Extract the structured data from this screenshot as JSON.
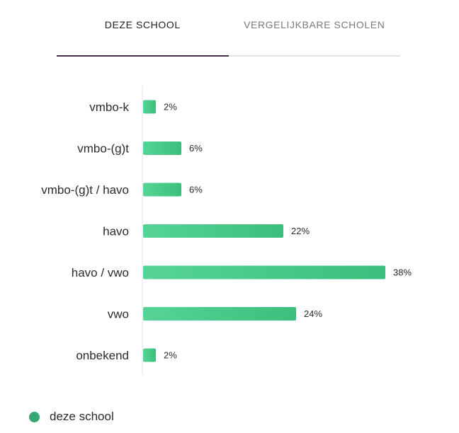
{
  "tabs": [
    {
      "label": "DEZE SCHOOL",
      "active": true
    },
    {
      "label": "VERGELIJKBARE SCHOLEN",
      "active": false
    }
  ],
  "chart_data": {
    "type": "bar",
    "orientation": "horizontal",
    "categories": [
      "vmbo-k",
      "vmbo-(g)t",
      "vmbo-(g)t / havo",
      "havo",
      "havo / vwo",
      "vwo",
      "onbekend"
    ],
    "series": [
      {
        "name": "deze school",
        "values": [
          2,
          6,
          6,
          22,
          38,
          24,
          2
        ],
        "value_labels": [
          "2%",
          "6%",
          "6%",
          "22%",
          "38%",
          "24%",
          "2%"
        ]
      }
    ],
    "title": "",
    "xlabel": "",
    "ylabel": "",
    "xlim": [
      0,
      38
    ],
    "grid": false,
    "legend_position": "bottom-left"
  },
  "legend": {
    "label": "deze school"
  },
  "colors": {
    "bar_light": "#55d496",
    "bar_dark": "#3cbf7c",
    "legend_dot": "#33a872",
    "tab_indicator": "#4b2a4f",
    "axis_line": "#e4e4e4"
  }
}
